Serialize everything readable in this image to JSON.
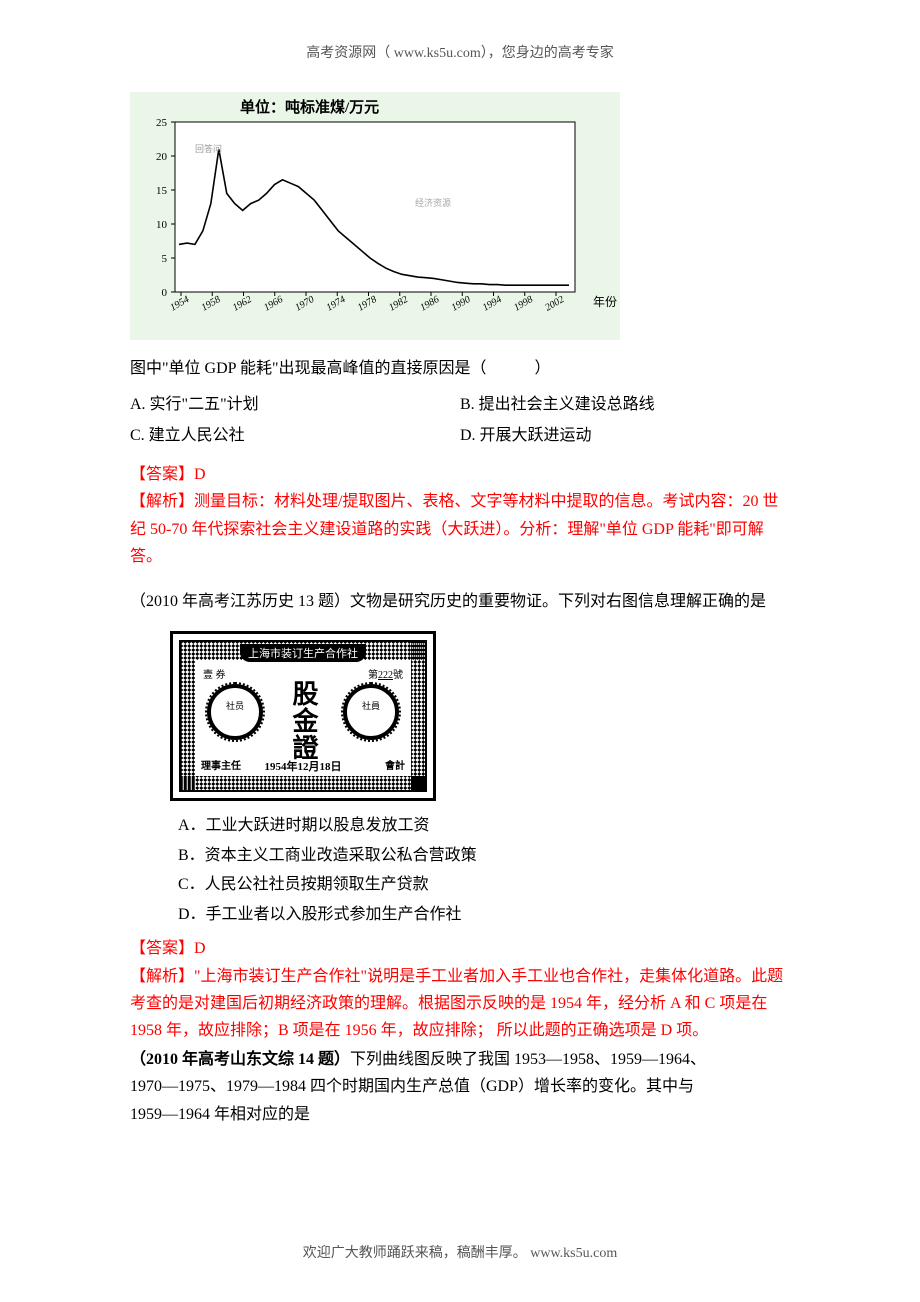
{
  "header": "高考资源网（ www.ks5u.com），您身边的高考专家",
  "footer": "欢迎广大教师踊跃来稿，稿酬丰厚。  www.ks5u.com",
  "chart1": {
    "type": "line",
    "title": "单位：吨标准煤/万元",
    "ylim": [
      0,
      25
    ],
    "ytick_step": 5,
    "yticks": [
      "0",
      "5",
      "10",
      "15",
      "20",
      "25"
    ],
    "xlabel_suffix": "年份",
    "xticks": [
      "1954",
      "1958",
      "1962",
      "1966",
      "1970",
      "1974",
      "1978",
      "1982",
      "1986",
      "1990",
      "1994",
      "1998",
      "2002"
    ],
    "line_color": "#000000",
    "background_color": "#eaf6e8",
    "grid_border_color": "#000000",
    "points": [
      [
        0,
        7.0
      ],
      [
        1,
        7.2
      ],
      [
        2,
        7.0
      ],
      [
        3,
        9.0
      ],
      [
        4,
        13.0
      ],
      [
        5,
        21.0
      ],
      [
        6,
        14.5
      ],
      [
        7,
        13.0
      ],
      [
        8,
        12.0
      ],
      [
        9,
        13.0
      ],
      [
        10,
        13.5
      ],
      [
        11,
        14.5
      ],
      [
        12,
        15.8
      ],
      [
        13,
        16.5
      ],
      [
        14,
        16.0
      ],
      [
        15,
        15.5
      ],
      [
        16,
        14.5
      ],
      [
        17,
        13.5
      ],
      [
        18,
        12.0
      ],
      [
        19,
        10.5
      ],
      [
        20,
        9.0
      ],
      [
        21,
        8.0
      ],
      [
        22,
        7.0
      ],
      [
        23,
        6.0
      ],
      [
        24,
        5.0
      ],
      [
        25,
        4.2
      ],
      [
        26,
        3.5
      ],
      [
        27,
        3.0
      ],
      [
        28,
        2.6
      ],
      [
        29,
        2.4
      ],
      [
        30,
        2.2
      ],
      [
        31,
        2.1
      ],
      [
        32,
        2.0
      ],
      [
        33,
        1.8
      ],
      [
        34,
        1.6
      ],
      [
        35,
        1.4
      ],
      [
        36,
        1.3
      ],
      [
        37,
        1.2
      ],
      [
        38,
        1.2
      ],
      [
        39,
        1.1
      ],
      [
        40,
        1.1
      ],
      [
        41,
        1.0
      ],
      [
        42,
        1.0
      ],
      [
        43,
        1.0
      ],
      [
        44,
        1.0
      ],
      [
        45,
        1.0
      ],
      [
        46,
        1.0
      ],
      [
        47,
        1.0
      ],
      [
        48,
        1.0
      ],
      [
        49,
        1.0
      ]
    ]
  },
  "q1": {
    "stem": "图中\"单位 GDP 能耗\"出现最高峰值的直接原因是（　　　）",
    "optA": "A. 实行\"二五\"计划",
    "optB": "B. 提出社会主义建设总路线",
    "optC": "C. 建立人民公社",
    "optD": "D. 开展大跃进运动",
    "answer_label": "【答案】D",
    "analysis_label": "【解析】",
    "analysis_body": "测量目标：材料处理/提取图片、表格、文字等材料中提取的信息。考试内容：20 世纪 50-70 年代探索社会主义建设道路的实践（大跃进）。分析：理解\"单位 GDP 能耗\"即可解答。"
  },
  "q2": {
    "intro_prefix": "（2010 年高考江苏历史 13 题）",
    "intro_body": "文物是研究历史的重要物证。下列对右图信息理解正确的是",
    "cert_title": "上海市装订生产合作社",
    "cert_center": "股金證",
    "cert_no_label": "第",
    "cert_no_suffix": "號",
    "cert_left_small": "壹 券",
    "cert_gear_left": "社员",
    "cert_gear_right": "社員",
    "cert_bottom_left": "理事主任",
    "cert_bottom_right": "會計",
    "cert_date": "1954年12月18日",
    "optA": "A．工业大跃进时期以股息发放工资",
    "optB": "B．资本主义工商业改造采取公私合营政策",
    "optC": "C．人民公社社员按期领取生产贷款",
    "optD": "D．手工业者以入股形式参加生产合作社",
    "answer_label": "【答案】D",
    "analysis_label": "【解析】",
    "analysis_body": "\"上海市装订生产合作社\"说明是手工业者加入手工业也合作社，走集体化道路。此题考查的是对建国后初期经济政策的理解。根据图示反映的是 1954 年，经分析 A 和 C 项是在 1958 年，故应排除；B 项是在 1956 年，故应排除； 所以此题的正确选项是 D 项。"
  },
  "q3": {
    "prefix": "（2010 年高考山东文综 14 题）",
    "body1": "下列曲线图反映了我国 1953—1958、1959—1964、",
    "body2": "1970—1975、1979—1984 四个时期国内生产总值（GDP）增长率的变化。其中与",
    "body3": "1959—1964 年相对应的是"
  }
}
